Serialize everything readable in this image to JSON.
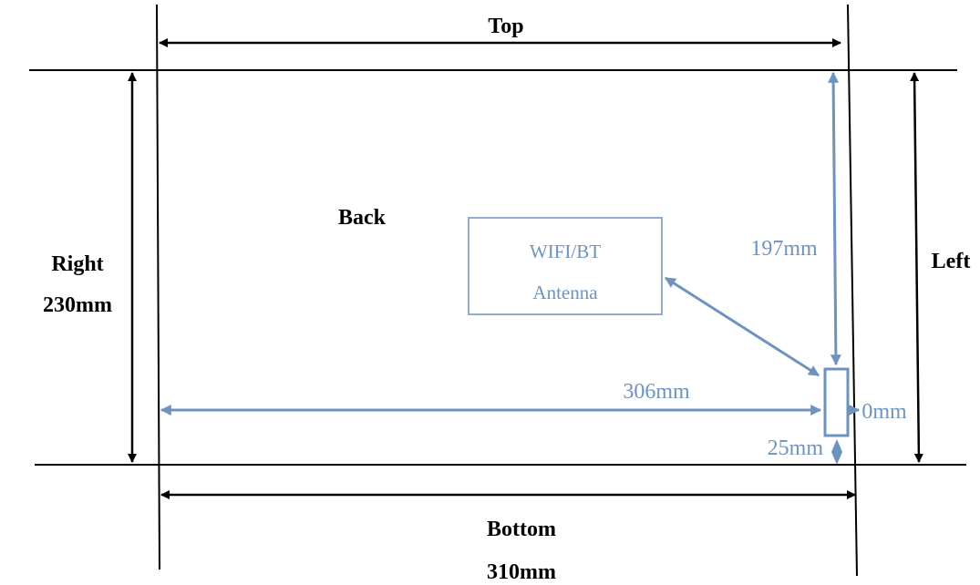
{
  "labels": {
    "top": "Top",
    "back": "Back",
    "right": "Right",
    "right_dim": "230mm",
    "left": "Left",
    "bottom": "Bottom",
    "bottom_dim": "310mm"
  },
  "antenna_box": {
    "line1": "WIFI/BT",
    "line2": "Antenna"
  },
  "dimensions": {
    "from_top": "197mm",
    "from_left_edge": "306mm",
    "module_height": "0mm",
    "from_bottom": "25mm"
  },
  "colors": {
    "outline": "#000000",
    "accent": "#6f93bf"
  }
}
